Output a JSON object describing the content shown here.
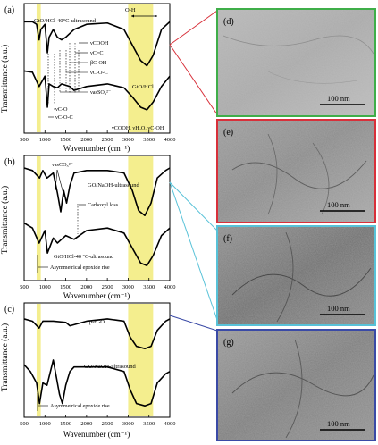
{
  "figure": {
    "ylabel": "Transmittance (a.u.)",
    "xlabel": "Wavenumber (cm⁻¹)"
  },
  "chart_data": [
    {
      "type": "line",
      "panel": "(a)",
      "x_ticks": [
        500,
        1000,
        1500,
        2000,
        2500,
        3000,
        3500,
        4000
      ],
      "xlim": [
        500,
        4000
      ],
      "ylabel": "Transmittance (a.u.)",
      "xlabel": "Wavenumber (cm⁻¹)",
      "highlights": [
        [
          800,
          900
        ],
        [
          3000,
          3600
        ]
      ],
      "series": [
        {
          "name": "GtO/HCl-40°C-ultrasound",
          "x": [
            500,
            700,
            800,
            860,
            900,
            1000,
            1060,
            1100,
            1200,
            1300,
            1400,
            1500,
            1600,
            1700,
            2000,
            2500,
            2900,
            3100,
            3300,
            3450,
            3600,
            3800,
            4000
          ],
          "y": [
            0.86,
            0.86,
            0.84,
            0.72,
            0.8,
            0.84,
            0.62,
            0.74,
            0.8,
            0.74,
            0.72,
            0.74,
            0.77,
            0.8,
            0.84,
            0.85,
            0.8,
            0.68,
            0.56,
            0.52,
            0.6,
            0.8,
            0.86
          ]
        },
        {
          "name": "GtO/HCl",
          "x": [
            500,
            700,
            860,
            1000,
            1060,
            1100,
            1200,
            1300,
            1400,
            1500,
            1600,
            1700,
            2000,
            2500,
            2900,
            3100,
            3300,
            3450,
            3600,
            3800,
            4000
          ],
          "y": [
            0.48,
            0.47,
            0.36,
            0.44,
            0.2,
            0.38,
            0.36,
            0.35,
            0.38,
            0.37,
            0.36,
            0.33,
            0.36,
            0.38,
            0.35,
            0.28,
            0.2,
            0.18,
            0.24,
            0.36,
            0.44
          ]
        }
      ],
      "annotations": [
        "O-H",
        "νCOOH",
        "νC=C",
        "βC-OH",
        "νC-O-C",
        "νasSO₄²⁻",
        "νC-O",
        "νC-O-C",
        "νCOOH, νH₂O, νC-OH"
      ]
    },
    {
      "type": "line",
      "panel": "(b)",
      "x_ticks": [
        500,
        1000,
        1500,
        2000,
        2500,
        3000,
        3500,
        4000
      ],
      "xlim": [
        500,
        4000
      ],
      "ylabel": "Transmittance (a.u.)",
      "xlabel": "Wavenumber (cm⁻¹)",
      "highlights": [
        [
          800,
          900
        ],
        [
          3000,
          3600
        ]
      ],
      "series": [
        {
          "name": "GO/NaOH-ultrasound",
          "x": [
            500,
            700,
            870,
            950,
            1050,
            1200,
            1300,
            1380,
            1450,
            1520,
            1600,
            1700,
            2000,
            2500,
            2900,
            3100,
            3250,
            3400,
            3550,
            3700,
            3900,
            4000
          ],
          "y": [
            0.9,
            0.88,
            0.82,
            0.88,
            0.82,
            0.86,
            0.7,
            0.55,
            0.72,
            0.62,
            0.76,
            0.86,
            0.88,
            0.88,
            0.86,
            0.72,
            0.56,
            0.52,
            0.62,
            0.82,
            0.88,
            0.9
          ]
        },
        {
          "name": "GtO/HCl-40 °C-ultrasound",
          "x": [
            500,
            700,
            860,
            1000,
            1060,
            1200,
            1300,
            1400,
            1500,
            1700,
            2000,
            2500,
            2900,
            3100,
            3300,
            3450,
            3600,
            3800,
            4000
          ],
          "y": [
            0.46,
            0.42,
            0.3,
            0.4,
            0.22,
            0.34,
            0.3,
            0.33,
            0.36,
            0.33,
            0.4,
            0.42,
            0.38,
            0.26,
            0.14,
            0.12,
            0.2,
            0.36,
            0.42
          ]
        }
      ],
      "annotations": [
        "νasCO₃²⁻",
        "Carboxyl loss",
        "Asymmetrical epoxide rise"
      ]
    },
    {
      "type": "line",
      "panel": "(c)",
      "x_ticks": [
        500,
        1000,
        1500,
        2000,
        2500,
        3000,
        3500,
        4000
      ],
      "xlim": [
        500,
        4000
      ],
      "ylabel": "Transmittance (a.u.)",
      "xlabel": "Wavenumber (cm⁻¹)",
      "highlights": [
        [
          800,
          900
        ],
        [
          3000,
          3600
        ]
      ],
      "series": [
        {
          "name": "p-rGO",
          "x": [
            500,
            700,
            860,
            950,
            1200,
            1500,
            1600,
            2000,
            2500,
            2900,
            3050,
            3200,
            3400,
            3550,
            3700,
            3900,
            4000
          ],
          "y": [
            0.86,
            0.84,
            0.78,
            0.84,
            0.84,
            0.83,
            0.8,
            0.84,
            0.86,
            0.84,
            0.7,
            0.62,
            0.6,
            0.62,
            0.76,
            0.84,
            0.86
          ]
        },
        {
          "name": "GO/NaOH-ultrasound",
          "x": [
            500,
            650,
            800,
            870,
            950,
            1050,
            1200,
            1350,
            1420,
            1500,
            1600,
            1700,
            2000,
            2500,
            2900,
            3050,
            3200,
            3400,
            3550,
            3700,
            3900,
            4000
          ],
          "y": [
            0.46,
            0.4,
            0.3,
            0.12,
            0.3,
            0.28,
            0.5,
            0.2,
            0.12,
            0.28,
            0.4,
            0.44,
            0.44,
            0.44,
            0.4,
            0.24,
            0.12,
            0.1,
            0.12,
            0.3,
            0.38,
            0.4
          ]
        }
      ],
      "annotations": [
        "Asymmetrical epoxide rise"
      ]
    }
  ],
  "panels": {
    "a": "(a)",
    "b": "(b)",
    "c": "(c)",
    "d": "(d)",
    "e": "(e)",
    "f": "(f)",
    "g": "(g)"
  },
  "scale_bar": "100 nm",
  "colors": {
    "highlight": "#f2eb7a",
    "frame_d": "#3fae49",
    "frame_e": "#d8303a",
    "frame_f": "#58c2d8",
    "frame_g": "#3a4aa6"
  }
}
